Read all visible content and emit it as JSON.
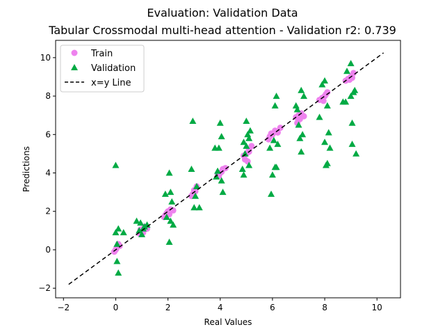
{
  "chart_data": {
    "type": "scatter",
    "title": "Evaluation: Validation Data",
    "subtitle": "Tabular Crossmodal multi-head attention - Validation r2: 0.739",
    "xlabel": "Real Values",
    "ylabel": "Predictions",
    "xlim": [
      -2.3,
      10.9
    ],
    "ylim": [
      -2.5,
      10.9
    ],
    "xticks": [
      -2,
      0,
      2,
      4,
      6,
      8,
      10
    ],
    "yticks": [
      -2,
      0,
      2,
      4,
      6,
      8,
      10
    ],
    "grid": false,
    "legend_position": "top-left",
    "series": [
      {
        "name": "Train",
        "marker": "circle",
        "color": "#ee82ee",
        "points": [
          [
            0.0,
            0.0
          ],
          [
            0.05,
            0.15
          ],
          [
            0.1,
            0.3
          ],
          [
            -0.05,
            -0.1
          ],
          [
            0.15,
            0.2
          ],
          [
            0.02,
            0.05
          ],
          [
            1.0,
            1.0
          ],
          [
            1.1,
            1.2
          ],
          [
            0.9,
            0.85
          ],
          [
            1.2,
            1.1
          ],
          [
            1.05,
            0.9
          ],
          [
            0.95,
            1.05
          ],
          [
            1.9,
            1.8
          ],
          [
            2.0,
            2.0
          ],
          [
            2.1,
            2.1
          ],
          [
            1.95,
            1.9
          ],
          [
            2.2,
            2.05
          ],
          [
            2.05,
            1.85
          ],
          [
            1.85,
            1.7
          ],
          [
            2.9,
            2.8
          ],
          [
            3.0,
            3.1
          ],
          [
            3.1,
            3.3
          ],
          [
            2.95,
            2.9
          ],
          [
            3.05,
            3.05
          ],
          [
            3.9,
            3.9
          ],
          [
            4.0,
            4.0
          ],
          [
            4.1,
            4.2
          ],
          [
            3.95,
            3.85
          ],
          [
            4.2,
            4.25
          ],
          [
            4.05,
            4.05
          ],
          [
            4.9,
            4.9
          ],
          [
            5.0,
            5.0
          ],
          [
            5.1,
            5.2
          ],
          [
            5.2,
            5.4
          ],
          [
            4.95,
            4.7
          ],
          [
            5.05,
            4.6
          ],
          [
            5.1,
            5.1
          ],
          [
            5.9,
            5.9
          ],
          [
            6.0,
            6.0
          ],
          [
            6.1,
            6.2
          ],
          [
            5.85,
            5.75
          ],
          [
            6.2,
            6.1
          ],
          [
            6.3,
            6.35
          ],
          [
            5.95,
            6.05
          ],
          [
            6.9,
            6.9
          ],
          [
            7.0,
            7.0
          ],
          [
            7.1,
            7.1
          ],
          [
            6.95,
            6.6
          ],
          [
            7.2,
            6.95
          ],
          [
            7.05,
            6.8
          ],
          [
            7.8,
            7.8
          ],
          [
            7.9,
            7.9
          ],
          [
            8.0,
            8.0
          ],
          [
            8.1,
            8.2
          ],
          [
            7.95,
            7.75
          ],
          [
            8.05,
            8.1
          ],
          [
            8.8,
            8.8
          ],
          [
            8.9,
            8.9
          ],
          [
            9.0,
            9.0
          ],
          [
            9.1,
            9.2
          ],
          [
            9.05,
            8.95
          ],
          [
            8.95,
            8.85
          ]
        ]
      },
      {
        "name": "Validation",
        "marker": "triangle",
        "color": "#00aa44",
        "points": [
          [
            0.0,
            4.4
          ],
          [
            0.05,
            -0.6
          ],
          [
            0.1,
            -1.2
          ],
          [
            0.0,
            0.9
          ],
          [
            0.1,
            1.1
          ],
          [
            0.3,
            0.9
          ],
          [
            0.05,
            0.3
          ],
          [
            0.8,
            1.5
          ],
          [
            0.9,
            1.0
          ],
          [
            1.0,
            0.8
          ],
          [
            1.1,
            1.2
          ],
          [
            1.2,
            1.3
          ],
          [
            0.95,
            1.4
          ],
          [
            1.05,
            1.1
          ],
          [
            1.9,
            2.9
          ],
          [
            2.05,
            4.0
          ],
          [
            2.1,
            3.0
          ],
          [
            2.15,
            2.5
          ],
          [
            2.05,
            0.4
          ],
          [
            2.2,
            1.3
          ],
          [
            2.1,
            1.5
          ],
          [
            1.95,
            1.7
          ],
          [
            2.9,
            4.2
          ],
          [
            2.95,
            6.7
          ],
          [
            3.0,
            2.2
          ],
          [
            3.2,
            2.2
          ],
          [
            3.1,
            3.3
          ],
          [
            3.05,
            2.8
          ],
          [
            3.8,
            5.3
          ],
          [
            3.95,
            5.3
          ],
          [
            4.0,
            6.6
          ],
          [
            4.05,
            5.9
          ],
          [
            4.05,
            3.6
          ],
          [
            4.1,
            3.0
          ],
          [
            3.85,
            3.8
          ],
          [
            3.9,
            4.1
          ],
          [
            4.9,
            3.9
          ],
          [
            4.85,
            4.2
          ],
          [
            4.95,
            5.0
          ],
          [
            5.0,
            6.7
          ],
          [
            5.05,
            6.0
          ],
          [
            5.1,
            5.8
          ],
          [
            5.0,
            5.4
          ],
          [
            5.1,
            4.4
          ],
          [
            4.9,
            5.6
          ],
          [
            5.15,
            6.2
          ],
          [
            5.9,
            5.3
          ],
          [
            5.95,
            2.9
          ],
          [
            6.0,
            3.9
          ],
          [
            6.1,
            4.3
          ],
          [
            6.15,
            4.3
          ],
          [
            6.1,
            7.5
          ],
          [
            6.15,
            8.0
          ],
          [
            6.05,
            5.7
          ],
          [
            6.2,
            5.5
          ],
          [
            6.9,
            7.5
          ],
          [
            7.0,
            6.5
          ],
          [
            7.05,
            5.8
          ],
          [
            7.1,
            5.1
          ],
          [
            7.1,
            8.3
          ],
          [
            7.2,
            8.0
          ],
          [
            7.15,
            6.0
          ],
          [
            6.95,
            7.3
          ],
          [
            7.8,
            6.9
          ],
          [
            7.9,
            8.6
          ],
          [
            8.0,
            8.8
          ],
          [
            8.0,
            5.6
          ],
          [
            8.05,
            4.4
          ],
          [
            8.1,
            4.5
          ],
          [
            8.15,
            6.1
          ],
          [
            8.1,
            7.5
          ],
          [
            8.2,
            5.3
          ],
          [
            8.7,
            7.7
          ],
          [
            8.8,
            7.7
          ],
          [
            8.85,
            9.3
          ],
          [
            9.0,
            9.7
          ],
          [
            9.05,
            6.6
          ],
          [
            9.05,
            5.5
          ],
          [
            9.1,
            8.2
          ],
          [
            9.15,
            8.3
          ],
          [
            9.2,
            5.0
          ],
          [
            9.0,
            8.0
          ]
        ]
      },
      {
        "name": "x=y Line",
        "marker": "dashed-line",
        "color": "#000000",
        "points": [
          [
            -1.8,
            -1.8
          ],
          [
            10.25,
            10.25
          ]
        ]
      }
    ]
  }
}
